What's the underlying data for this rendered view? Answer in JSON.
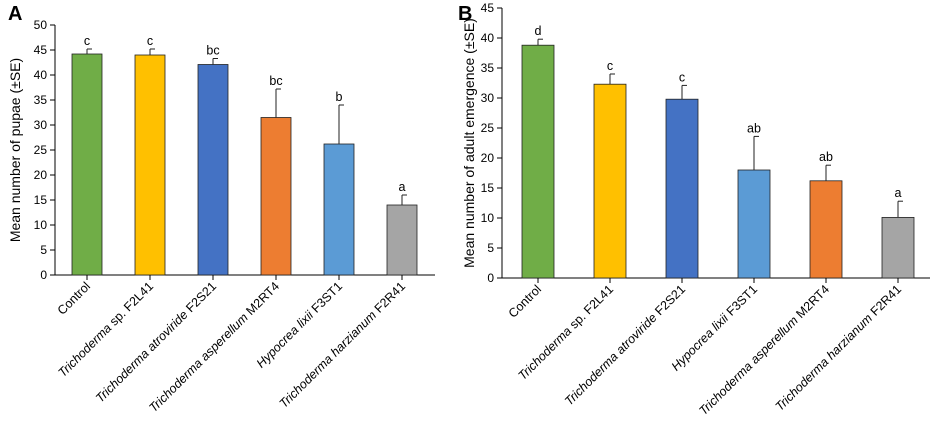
{
  "chart_data": [
    {
      "type": "bar",
      "panel_label": "A",
      "title": "",
      "xlabel": "",
      "ylabel": "Mean number of pupae (±SE)",
      "ylim": [
        0,
        50
      ],
      "yticks": [
        0,
        5,
        10,
        15,
        20,
        25,
        30,
        35,
        40,
        45,
        50
      ],
      "categories": [
        {
          "italic": "",
          "plain": "Control"
        },
        {
          "italic": "Trichoderma",
          "plain": " sp. F2L41"
        },
        {
          "italic": "Trichoderma atroviride",
          "plain": " F2S21"
        },
        {
          "italic": "Trichoderma asperellum",
          "plain": " M2RT4"
        },
        {
          "italic": "Hypocrea lixii",
          "plain": " F3ST1"
        },
        {
          "italic": "Trichoderma harzianum",
          "plain": " F2R41"
        }
      ],
      "values": [
        44.2,
        44.0,
        42.1,
        31.5,
        26.2,
        14.0
      ],
      "errors": [
        1.0,
        1.2,
        1.2,
        5.7,
        7.8,
        2.0
      ],
      "letters": [
        "c",
        "c",
        "bc",
        "bc",
        "b",
        "a"
      ],
      "colors": [
        "#70AD47",
        "#FFC000",
        "#4472C4",
        "#ED7D31",
        "#5B9BD5",
        "#A5A5A5"
      ]
    },
    {
      "type": "bar",
      "panel_label": "B",
      "title": "",
      "xlabel": "",
      "ylabel": "Mean number of adult emergence (±SE)",
      "ylim": [
        0,
        45
      ],
      "yticks": [
        0,
        5,
        10,
        15,
        20,
        25,
        30,
        35,
        40,
        45
      ],
      "categories": [
        {
          "italic": "",
          "plain": "Control"
        },
        {
          "italic": "Trichoderma",
          "plain": " sp. F2L41"
        },
        {
          "italic": "Trichoderma atroviride",
          "plain": " F2S21"
        },
        {
          "italic": "Hypocrea lixii",
          "plain": " F3ST1"
        },
        {
          "italic": "Trichoderma asperellum",
          "plain": " M2RT4"
        },
        {
          "italic": "Trichoderma harzianum",
          "plain": " F2R41"
        }
      ],
      "values": [
        38.8,
        32.3,
        29.8,
        18.0,
        16.2,
        10.1
      ],
      "errors": [
        1.0,
        1.7,
        2.3,
        5.6,
        2.6,
        2.7
      ],
      "letters": [
        "d",
        "c",
        "c",
        "ab",
        "ab",
        "a"
      ],
      "colors": [
        "#70AD47",
        "#FFC000",
        "#4472C4",
        "#5B9BD5",
        "#ED7D31",
        "#A5A5A5"
      ]
    }
  ]
}
